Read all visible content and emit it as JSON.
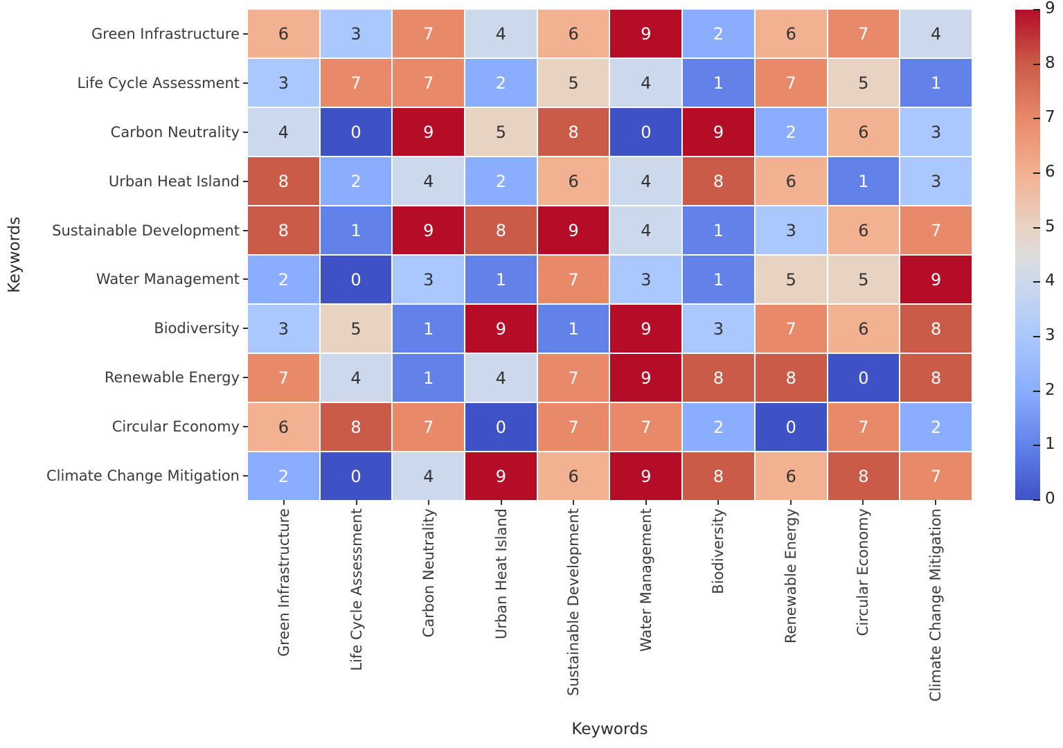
{
  "chart_data": {
    "type": "heatmap",
    "title": "",
    "xlabel": "Keywords",
    "ylabel": "Keywords",
    "categories": [
      "Green Infrastructure",
      "Life Cycle Assessment",
      "Carbon Neutrality",
      "Urban Heat Island",
      "Sustainable Development",
      "Water Management",
      "Biodiversity",
      "Renewable Energy",
      "Circular Economy",
      "Climate Change Mitigation"
    ],
    "matrix": [
      [
        6,
        3,
        7,
        4,
        6,
        9,
        2,
        6,
        7,
        4
      ],
      [
        3,
        7,
        7,
        2,
        5,
        4,
        1,
        7,
        5,
        1
      ],
      [
        4,
        0,
        9,
        5,
        8,
        0,
        9,
        2,
        6,
        3
      ],
      [
        8,
        2,
        4,
        2,
        6,
        4,
        8,
        6,
        1,
        3
      ],
      [
        8,
        1,
        9,
        8,
        9,
        4,
        1,
        3,
        6,
        7
      ],
      [
        2,
        0,
        3,
        1,
        7,
        3,
        1,
        5,
        5,
        9
      ],
      [
        3,
        5,
        1,
        9,
        1,
        9,
        3,
        7,
        6,
        8
      ],
      [
        7,
        4,
        1,
        4,
        7,
        9,
        8,
        8,
        0,
        8
      ],
      [
        6,
        8,
        7,
        0,
        7,
        7,
        2,
        0,
        7,
        2
      ],
      [
        2,
        0,
        4,
        9,
        6,
        9,
        8,
        6,
        8,
        7
      ]
    ],
    "vmin": 0,
    "vmax": 9,
    "colorbar_ticks": [
      0,
      1,
      2,
      3,
      4,
      5,
      6,
      7,
      8,
      9
    ],
    "colormap": "coolwarm",
    "value_colors": {
      "0": "#3e52c6",
      "1": "#6282ea",
      "2": "#8aadfd",
      "3": "#aac8fd",
      "4": "#ccd9ec",
      "5": "#e8d2c2",
      "6": "#f2b191",
      "7": "#e8896a",
      "8": "#ca5b49",
      "9": "#b50d28"
    },
    "colorbar_mid_color": "#dddcdc",
    "annotation_colors": {
      "dark": "#333333",
      "light": "#ffffff"
    },
    "dark_text_values": [
      3,
      4,
      5,
      6
    ],
    "legend_position": "right",
    "grid": false
  }
}
